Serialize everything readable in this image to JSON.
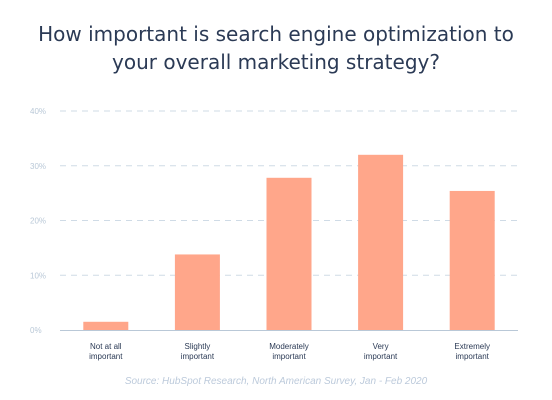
{
  "chart_data": {
    "type": "bar",
    "title_lines": [
      "How important is search engine optimization to",
      "your overall marketing strategy?"
    ],
    "categories": [
      [
        "Not at all",
        "important"
      ],
      [
        "Slightly",
        "important"
      ],
      [
        "Moderately",
        "important"
      ],
      [
        "Very",
        "important"
      ],
      [
        "Extremely",
        "important"
      ]
    ],
    "values": [
      1.5,
      13.8,
      27.8,
      32,
      25.4
    ],
    "yticks": [
      "0%",
      "10%",
      "20%",
      "30%",
      "40%"
    ],
    "ylim": [
      0,
      40
    ],
    "grid": true,
    "bar_color": "#ffa68a",
    "grid_color": "#cfdbe6",
    "axis_color": "#b9c8d7",
    "tick_color": "#b9c8d7",
    "label_color": "#2b3a55",
    "source": "Source: HubSpot Research, North American Survey, Jan - Feb 2020"
  }
}
